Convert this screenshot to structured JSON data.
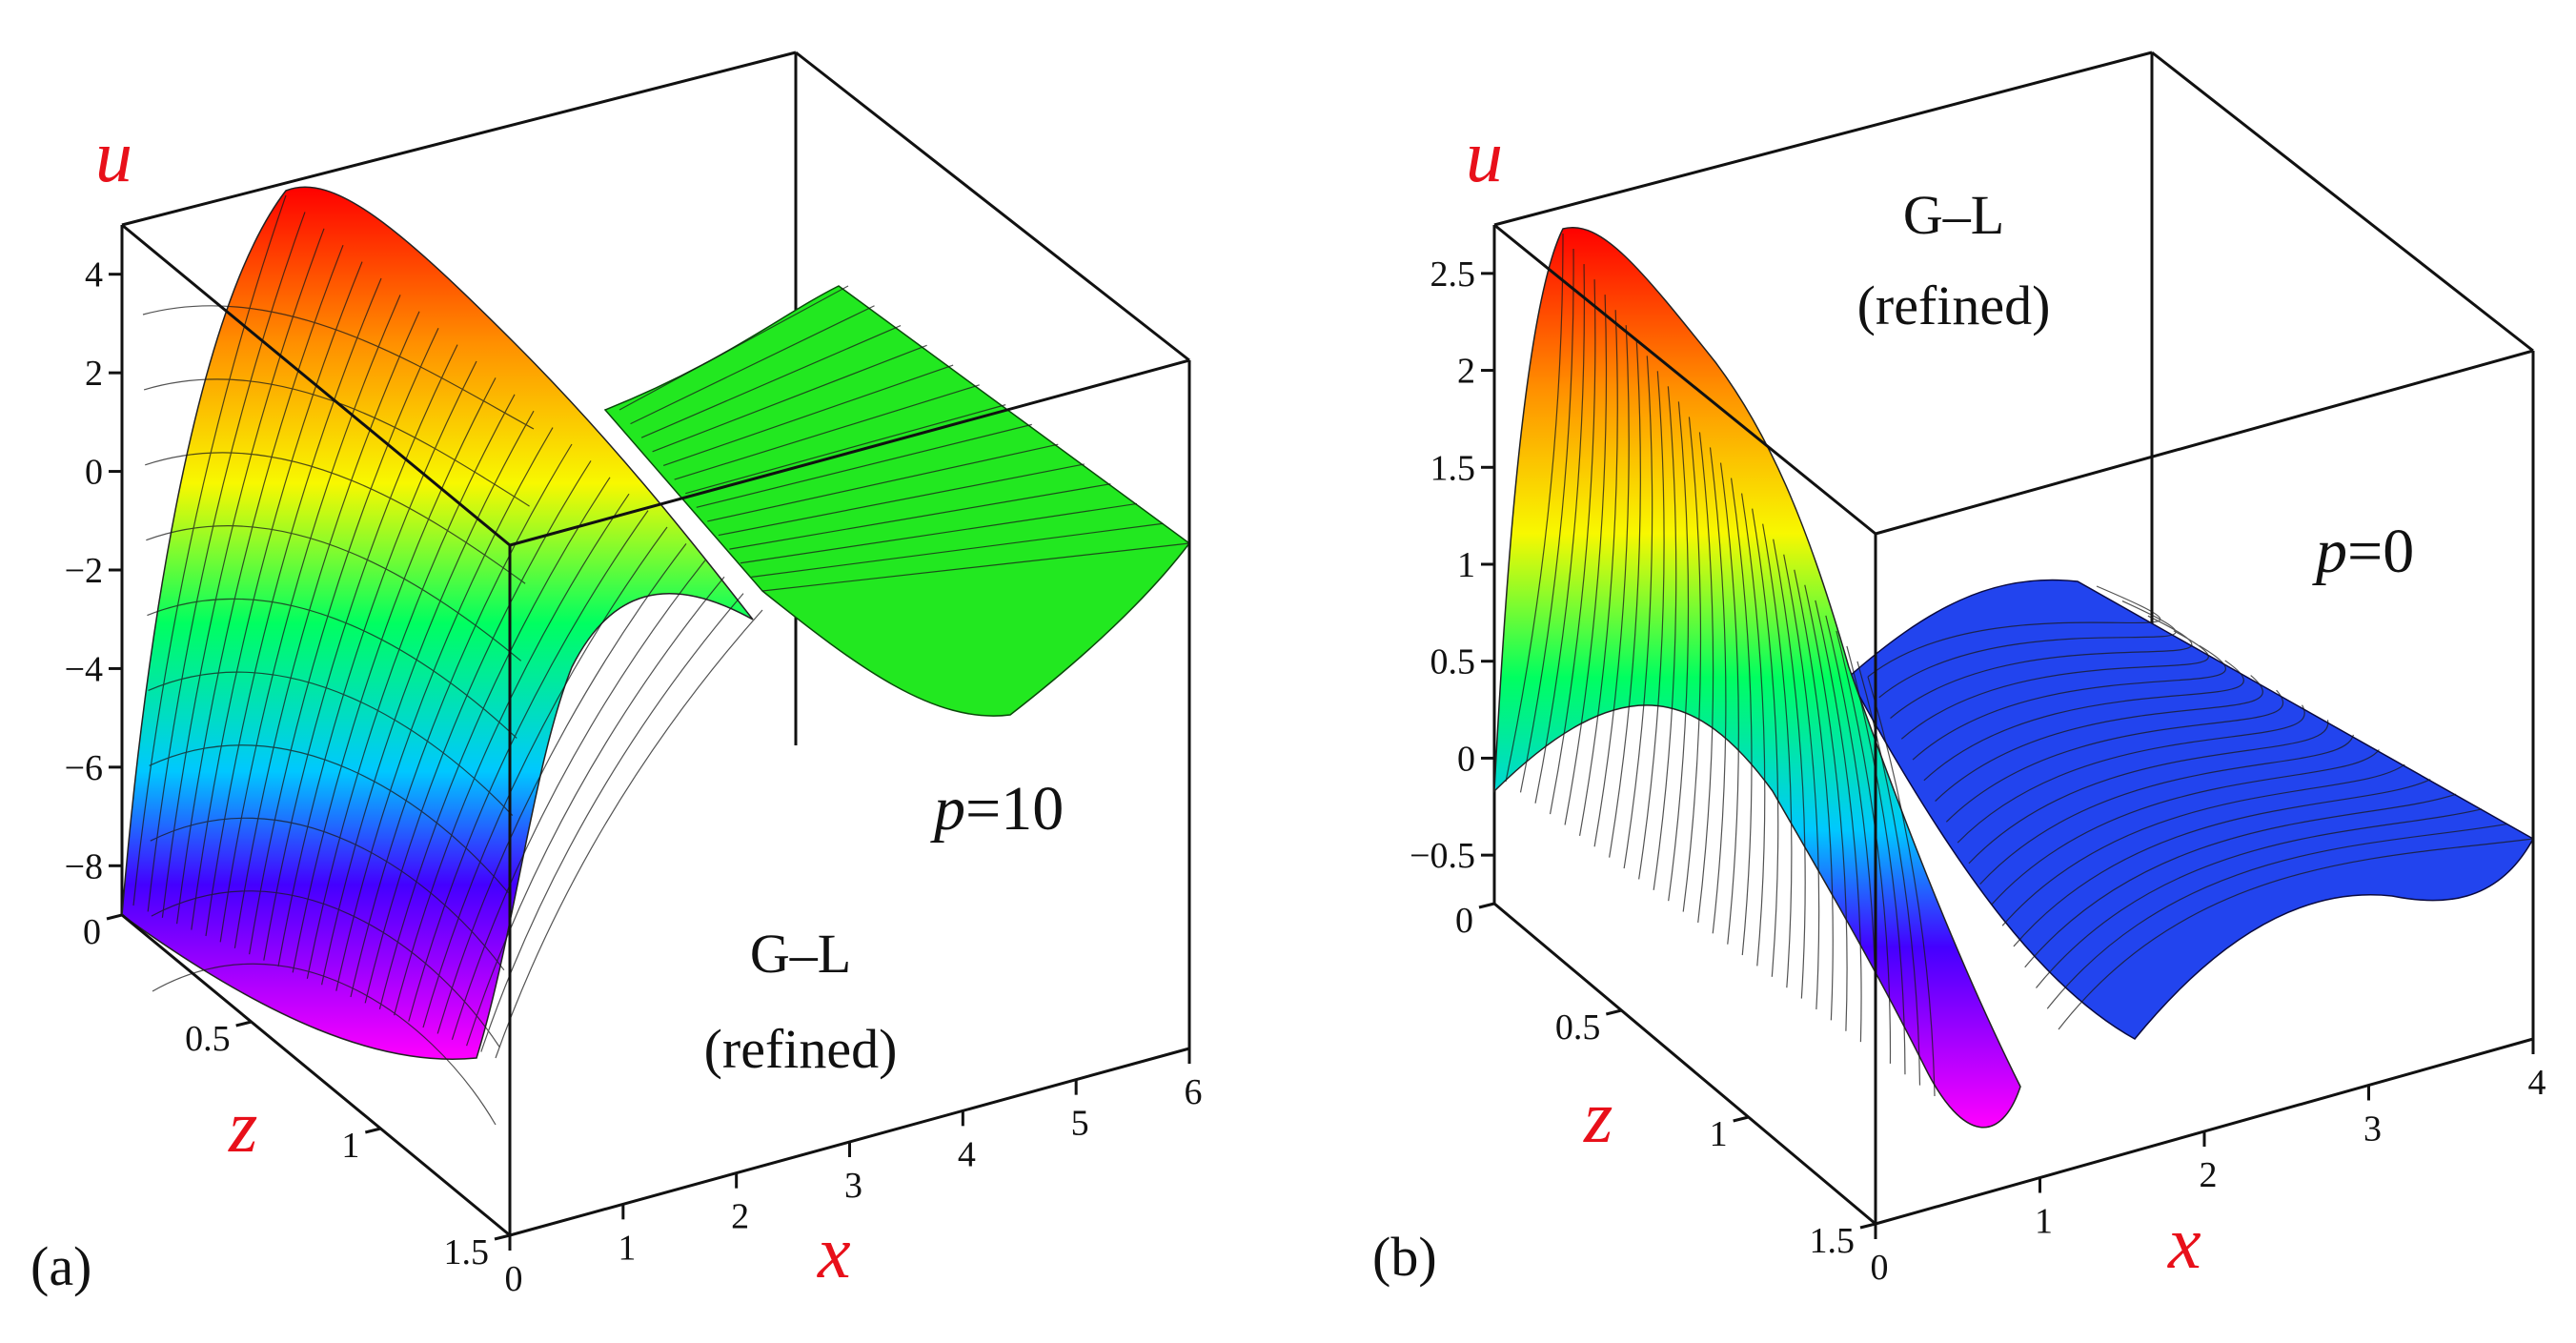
{
  "figure": {
    "panels": [
      "a",
      "b"
    ]
  },
  "chart_data": [
    {
      "type": "surface3d",
      "panel_label": "(a)",
      "title": "",
      "annotation_line1": "G–L",
      "annotation_line2": "(refined)",
      "param_symbol": "p",
      "param_text": "=10",
      "param_value": 10,
      "xlabel": "x",
      "ylabel": "z",
      "zlabel": "u",
      "xlim": [
        0,
        6
      ],
      "ylim": [
        0,
        1.5
      ],
      "zlim": [
        -9,
        5
      ],
      "x_ticks": [
        "0",
        "1",
        "2",
        "3",
        "4",
        "5",
        "6"
      ],
      "y_ticks": [
        "0",
        "0.5",
        "1",
        "1.5"
      ],
      "z_ticks": [
        "4",
        "2",
        "0",
        "−2",
        "−4",
        "−6",
        "−8"
      ],
      "z_tick_values": [
        4,
        2,
        0,
        -2,
        -4,
        -6,
        -8
      ],
      "colormap": "rainbow (magenta=low, red=high)",
      "surface_description": "Wave along x: maximum ≈5 near x≈0.6, z=0; minimum ≈ −9 at x=0 toward z=1.5; flattens to ≈ −1 for large x"
    },
    {
      "type": "surface3d",
      "panel_label": "(b)",
      "title": "",
      "annotation_line1": "G–L",
      "annotation_line2": "(refined)",
      "param_symbol": "p",
      "param_text": "=0",
      "param_value": 0,
      "xlabel": "x",
      "ylabel": "z",
      "zlabel": "u",
      "xlim": [
        0,
        4
      ],
      "ylim": [
        0,
        1.5
      ],
      "zlim": [
        -0.75,
        2.75
      ],
      "x_ticks": [
        "0",
        "1",
        "2",
        "3",
        "4"
      ],
      "y_ticks": [
        "0",
        "0.5",
        "1",
        "1.5"
      ],
      "z_ticks": [
        "2.5",
        "2",
        "1.5",
        "1",
        "0.5",
        "0",
        "−0.5"
      ],
      "z_tick_values": [
        2.5,
        2,
        1.5,
        1,
        0.5,
        0,
        -0.5
      ],
      "colormap": "rainbow (magenta=low, red=high)",
      "surface_description": "Sharp peak ≈2.75 near x≈0.3, z=0; deep minimum near x≈1.1, z=1.5; flattens to ≈0 for large x"
    }
  ]
}
